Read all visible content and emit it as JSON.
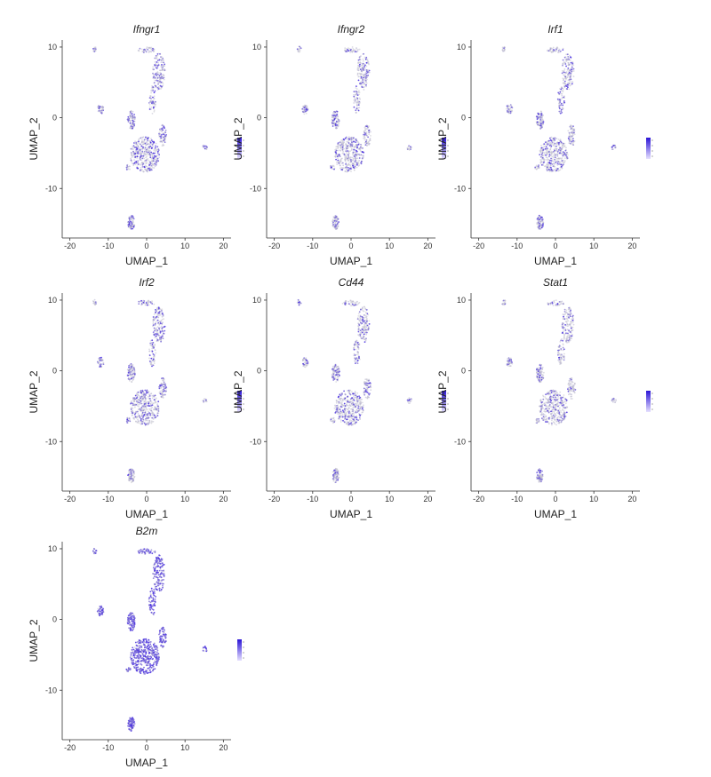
{
  "chart_data": [
    {
      "type": "scatter",
      "title": "Ifngr1",
      "xlabel": "UMAP_1",
      "ylabel": "UMAP_2",
      "xlim": [
        -22,
        22
      ],
      "ylim": [
        -17,
        11
      ],
      "xticks": [
        -20,
        -10,
        0,
        10,
        20
      ],
      "yticks": [
        10,
        0,
        -10
      ],
      "expression_level": 0.35,
      "legend": "right"
    },
    {
      "type": "scatter",
      "title": "Ifngr2",
      "xlabel": "UMAP_1",
      "ylabel": "UMAP_2",
      "xlim": [
        -22,
        22
      ],
      "ylim": [
        -17,
        11
      ],
      "xticks": [
        -20,
        -10,
        0,
        10,
        20
      ],
      "yticks": [
        10,
        0,
        -10
      ],
      "expression_level": 0.3,
      "legend": "right"
    },
    {
      "type": "scatter",
      "title": "Irf1",
      "xlabel": "UMAP_1",
      "ylabel": "UMAP_2",
      "xlim": [
        -22,
        22
      ],
      "ylim": [
        -17,
        11
      ],
      "xticks": [
        -20,
        -10,
        0,
        10,
        20
      ],
      "yticks": [
        10,
        0,
        -10
      ],
      "expression_level": 0.3,
      "legend": "right"
    },
    {
      "type": "scatter",
      "title": "Irf2",
      "xlabel": "UMAP_1",
      "ylabel": "UMAP_2",
      "xlim": [
        -22,
        22
      ],
      "ylim": [
        -17,
        11
      ],
      "xticks": [
        -20,
        -10,
        0,
        10,
        20
      ],
      "yticks": [
        10,
        0,
        -10
      ],
      "expression_level": 0.35,
      "legend": "right"
    },
    {
      "type": "scatter",
      "title": "Cd44",
      "xlabel": "UMAP_1",
      "ylabel": "UMAP_2",
      "xlim": [
        -22,
        22
      ],
      "ylim": [
        -17,
        11
      ],
      "xticks": [
        -20,
        -10,
        0,
        10,
        20
      ],
      "yticks": [
        10,
        0,
        -10
      ],
      "expression_level": 0.3,
      "legend": "right"
    },
    {
      "type": "scatter",
      "title": "Stat1",
      "xlabel": "UMAP_1",
      "ylabel": "UMAP_2",
      "xlim": [
        -22,
        22
      ],
      "ylim": [
        -17,
        11
      ],
      "xticks": [
        -20,
        -10,
        0,
        10,
        20
      ],
      "yticks": [
        10,
        0,
        -10
      ],
      "expression_level": 0.25,
      "legend": "right"
    },
    {
      "type": "scatter",
      "title": "B2m",
      "xlabel": "UMAP_1",
      "ylabel": "UMAP_2",
      "xlim": [
        -22,
        22
      ],
      "ylim": [
        -17,
        11
      ],
      "xticks": [
        -20,
        -10,
        0,
        10,
        20
      ],
      "yticks": [
        10,
        0,
        -10
      ],
      "expression_level": 0.9,
      "legend": "right"
    }
  ],
  "clusters": [
    {
      "name": "top-left-dot",
      "cx": -13.5,
      "cy": 9.7,
      "rx": 0.5,
      "ry": 0.4,
      "n": 15
    },
    {
      "name": "top-strip",
      "cx": 0.0,
      "cy": 9.6,
      "rx": 2.3,
      "ry": 0.4,
      "n": 40
    },
    {
      "name": "upper-lobe",
      "cx": 3.2,
      "cy": 6.5,
      "rx": 1.6,
      "ry": 2.6,
      "n": 150
    },
    {
      "name": "stalk",
      "cx": 1.5,
      "cy": 2.5,
      "rx": 0.9,
      "ry": 2.0,
      "n": 60
    },
    {
      "name": "left-island",
      "cx": -12.0,
      "cy": 1.2,
      "rx": 0.8,
      "ry": 0.7,
      "n": 40
    },
    {
      "name": "mid-left-blob",
      "cx": -4.0,
      "cy": -0.3,
      "rx": 1.0,
      "ry": 1.3,
      "n": 90
    },
    {
      "name": "mid-right-arm",
      "cx": 4.2,
      "cy": -2.5,
      "rx": 1.0,
      "ry": 1.5,
      "n": 70
    },
    {
      "name": "lower-mass",
      "cx": -0.5,
      "cy": -5.2,
      "rx": 3.8,
      "ry": 2.5,
      "n": 380
    },
    {
      "name": "lower-left-spur",
      "cx": -4.8,
      "cy": -7.0,
      "rx": 0.6,
      "ry": 0.4,
      "n": 15
    },
    {
      "name": "right-dot",
      "cx": 15.2,
      "cy": -4.2,
      "rx": 0.6,
      "ry": 0.4,
      "n": 15
    },
    {
      "name": "bottom-blob",
      "cx": -4.0,
      "cy": -14.8,
      "rx": 0.9,
      "ry": 1.0,
      "n": 80
    }
  ],
  "colors": {
    "low": "#c8c8cc",
    "high": "#3b1fe0",
    "axis": "#333333",
    "legend_top": "#2b14d6",
    "legend_bottom": "#e6e0ff"
  }
}
